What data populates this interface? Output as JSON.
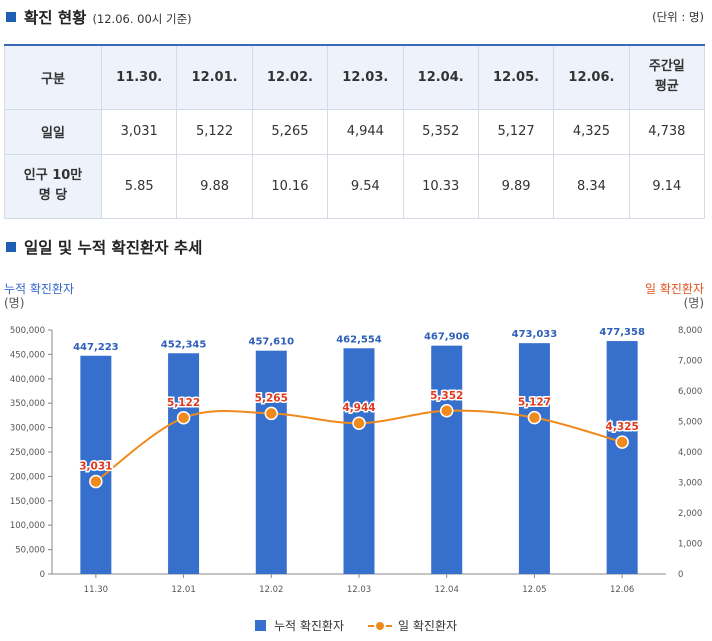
{
  "section1": {
    "title": "확진 현황",
    "subtitle": "(12.06. 00시 기준)",
    "unit": "(단위 : 명)"
  },
  "table": {
    "headers": [
      "구분",
      "11.30.",
      "12.01.",
      "12.02.",
      "12.03.",
      "12.04.",
      "12.05.",
      "12.06.",
      "주간일\n평균"
    ],
    "rows": [
      {
        "label": "일일",
        "values": [
          "3,031",
          "5,122",
          "5,265",
          "4,944",
          "5,352",
          "5,127",
          "4,325",
          "4,738"
        ]
      },
      {
        "label": "인구 10만\n명 당",
        "values": [
          "5.85",
          "9.88",
          "10.16",
          "9.54",
          "10.33",
          "9.89",
          "8.34",
          "9.14"
        ]
      }
    ]
  },
  "section2": {
    "title": "일일 및 누적 확진환자 추세"
  },
  "chart_data": {
    "type": "bar",
    "categories": [
      "11.30",
      "12.01",
      "12.02",
      "12.03",
      "12.04",
      "12.05",
      "12.06"
    ],
    "series": [
      {
        "name": "누적 확진환자",
        "type": "bar",
        "axis": "left",
        "color": "#3670cc",
        "values": [
          447223,
          452345,
          457610,
          462554,
          467906,
          473033,
          477358
        ],
        "labels": [
          "447,223",
          "452,345",
          "457,610",
          "462,554",
          "467,906",
          "473,033",
          "477,358"
        ]
      },
      {
        "name": "일 확진환자",
        "type": "line",
        "axis": "right",
        "color": "#f08a1c",
        "label_color": "#e03a1e",
        "values": [
          3031,
          5122,
          5265,
          4944,
          5352,
          5127,
          4325
        ],
        "labels": [
          "3,031",
          "5,122",
          "5,265",
          "4,944",
          "5,352",
          "5,127",
          "4,325"
        ]
      }
    ],
    "ylabel_left": "누적 확진환자",
    "ylabel_left_unit": "(명)",
    "ylabel_right": "일 확진환자",
    "ylabel_right_unit": "(명)",
    "ylim_left": [
      0,
      500000
    ],
    "ylim_right": [
      0,
      8000
    ],
    "yticks_left": [
      "0",
      "50,000",
      "100,000",
      "150,000",
      "200,000",
      "250,000",
      "300,000",
      "350,000",
      "400,000",
      "450,000",
      "500,000"
    ],
    "yticks_right": [
      "0",
      "1,000",
      "2,000",
      "3,000",
      "4,000",
      "5,000",
      "6,000",
      "7,000",
      "8,000"
    ],
    "grid": false,
    "legend_position": "bottom"
  }
}
